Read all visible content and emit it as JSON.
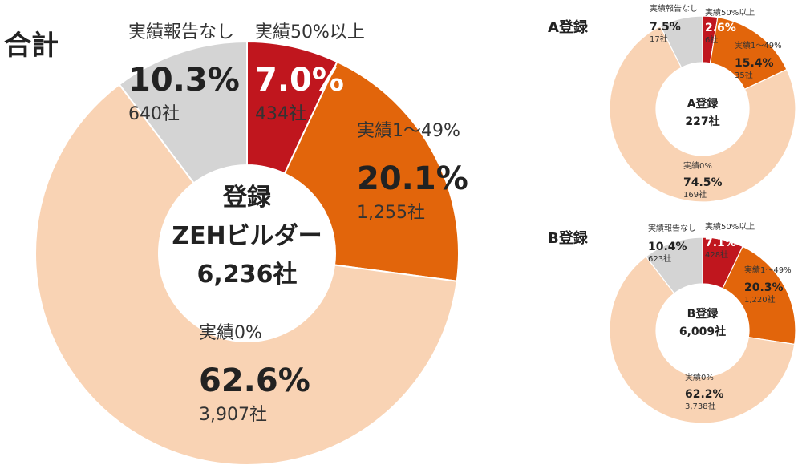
{
  "chart_data": [
    {
      "type": "pie",
      "section_label": "合計",
      "center_lines": [
        "登録",
        "ZEHビルダー",
        "6,236社"
      ],
      "colors": [
        "#c0161e",
        "#e2650b",
        "#f9d3b4",
        "#d4d4d4"
      ],
      "slices": [
        {
          "label": "実績50%以上",
          "percent": 7.0,
          "percent_text": "7.0%",
          "count_text": "434社"
        },
        {
          "label": "実績1～49%",
          "percent": 20.1,
          "percent_text": "20.1%",
          "count_text": "1,255社"
        },
        {
          "label": "実績0%",
          "percent": 62.6,
          "percent_text": "62.6%",
          "count_text": "3,907社"
        },
        {
          "label": "実績報告なし",
          "percent": 10.3,
          "percent_text": "10.3%",
          "count_text": "640社"
        }
      ]
    },
    {
      "type": "pie",
      "section_label": "A登録",
      "center_lines": [
        "A登録",
        "227社"
      ],
      "colors": [
        "#c0161e",
        "#e2650b",
        "#f9d3b4",
        "#d4d4d4"
      ],
      "slices": [
        {
          "label": "実績50%以上",
          "percent": 2.6,
          "percent_text": "2.6%",
          "count_text": "6社"
        },
        {
          "label": "実績1～49%",
          "percent": 15.4,
          "percent_text": "15.4%",
          "count_text": "35社"
        },
        {
          "label": "実績0%",
          "percent": 74.5,
          "percent_text": "74.5%",
          "count_text": "169社"
        },
        {
          "label": "実績報告なし",
          "percent": 7.5,
          "percent_text": "7.5%",
          "count_text": "17社"
        }
      ]
    },
    {
      "type": "pie",
      "section_label": "B登録",
      "center_lines": [
        "B登録",
        "6,009社"
      ],
      "colors": [
        "#c0161e",
        "#e2650b",
        "#f9d3b4",
        "#d4d4d4"
      ],
      "slices": [
        {
          "label": "実績50%以上",
          "percent": 7.1,
          "percent_text": "7.1%",
          "count_text": "428社"
        },
        {
          "label": "実績1～49%",
          "percent": 20.3,
          "percent_text": "20.3%",
          "count_text": "1,220社"
        },
        {
          "label": "実績0%",
          "percent": 62.2,
          "percent_text": "62.2%",
          "count_text": "3,738社"
        },
        {
          "label": "実績報告なし",
          "percent": 10.4,
          "percent_text": "10.4%",
          "count_text": "623社"
        }
      ]
    }
  ]
}
